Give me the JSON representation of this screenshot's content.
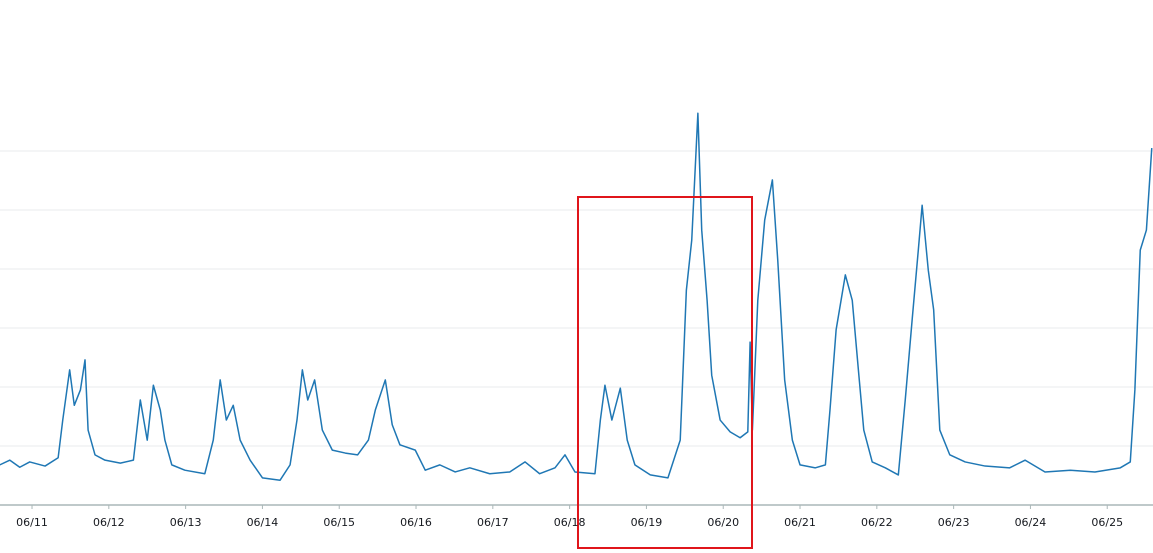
{
  "chart_data": {
    "type": "line",
    "x": [
      -0.42,
      -0.29,
      -0.16,
      -0.03,
      0.17,
      0.34,
      0.4,
      0.49,
      0.55,
      0.63,
      0.69,
      0.73,
      0.82,
      0.95,
      1.15,
      1.32,
      1.41,
      1.5,
      1.58,
      1.67,
      1.73,
      1.82,
      1.99,
      2.25,
      2.36,
      2.45,
      2.53,
      2.62,
      2.71,
      2.84,
      3.0,
      3.23,
      3.36,
      3.45,
      3.52,
      3.59,
      3.68,
      3.78,
      3.91,
      4.08,
      4.24,
      4.38,
      4.47,
      4.6,
      4.69,
      4.79,
      4.99,
      5.12,
      5.31,
      5.51,
      5.7,
      5.96,
      6.22,
      6.42,
      6.61,
      6.81,
      6.94,
      7.07,
      7.33,
      7.4,
      7.46,
      7.55,
      7.66,
      7.75,
      7.85,
      8.05,
      8.28,
      8.44,
      8.52,
      8.59,
      8.67,
      8.72,
      8.79,
      8.85,
      8.96,
      9.09,
      9.22,
      9.32,
      9.35,
      9.38,
      9.45,
      9.54,
      9.64,
      9.71,
      9.8,
      9.9,
      10.0,
      10.2,
      10.33,
      10.39,
      10.47,
      10.59,
      10.68,
      10.76,
      10.83,
      10.94,
      11.11,
      11.28,
      11.37,
      11.46,
      11.54,
      11.59,
      11.67,
      11.74,
      11.82,
      11.95,
      12.15,
      12.41,
      12.73,
      12.93,
      13.19,
      13.52,
      13.84,
      14.17,
      14.3,
      14.36,
      14.43,
      14.51,
      14.58
    ],
    "series": [
      {
        "color": "#1f77b4",
        "values": [
          0.68,
          0.76,
          0.64,
          0.73,
          0.66,
          0.8,
          1.44,
          2.29,
          1.69,
          1.95,
          2.46,
          1.27,
          0.85,
          0.76,
          0.71,
          0.76,
          1.78,
          1.1,
          2.03,
          1.61,
          1.1,
          0.68,
          0.59,
          0.53,
          1.1,
          2.12,
          1.44,
          1.69,
          1.1,
          0.76,
          0.46,
          0.42,
          0.68,
          1.44,
          2.29,
          1.78,
          2.12,
          1.27,
          0.93,
          0.88,
          0.85,
          1.1,
          1.61,
          2.12,
          1.36,
          1.02,
          0.93,
          0.59,
          0.68,
          0.56,
          0.63,
          0.53,
          0.56,
          0.73,
          0.53,
          0.63,
          0.85,
          0.56,
          0.53,
          1.44,
          2.03,
          1.44,
          1.98,
          1.1,
          0.68,
          0.51,
          0.46,
          1.1,
          3.64,
          4.49,
          6.64,
          4.66,
          3.47,
          2.2,
          1.44,
          1.24,
          1.14,
          1.24,
          2.76,
          1.27,
          3.47,
          4.83,
          5.51,
          4.15,
          2.12,
          1.1,
          0.68,
          0.63,
          0.68,
          1.61,
          2.97,
          3.9,
          3.47,
          2.29,
          1.27,
          0.73,
          0.63,
          0.51,
          1.78,
          3.14,
          4.32,
          5.08,
          3.98,
          3.31,
          1.27,
          0.85,
          0.73,
          0.66,
          0.63,
          0.76,
          0.56,
          0.59,
          0.56,
          0.63,
          0.73,
          1.95,
          4.32,
          4.66,
          6.05
        ]
      }
    ],
    "xlim": [
      -0.417,
      14.596
    ],
    "xticks": [
      {
        "value": 0,
        "label": "06/11"
      },
      {
        "value": 1,
        "label": "06/12"
      },
      {
        "value": 2,
        "label": "06/13"
      },
      {
        "value": 3,
        "label": "06/14"
      },
      {
        "value": 4,
        "label": "06/15"
      },
      {
        "value": 5,
        "label": "06/16"
      },
      {
        "value": 6,
        "label": "06/17"
      },
      {
        "value": 7,
        "label": "06/18"
      },
      {
        "value": 8,
        "label": "06/19"
      },
      {
        "value": 9,
        "label": "06/20"
      },
      {
        "value": 10,
        "label": "06/21"
      },
      {
        "value": 11,
        "label": "06/22"
      },
      {
        "value": 12,
        "label": "06/23"
      },
      {
        "value": 13,
        "label": "06/24"
      },
      {
        "value": 14,
        "label": "06/25"
      }
    ],
    "ylim": [
      0,
      8.56
    ],
    "yticks": [
      1,
      2,
      3,
      4,
      5,
      6
    ],
    "grid": true
  }
}
